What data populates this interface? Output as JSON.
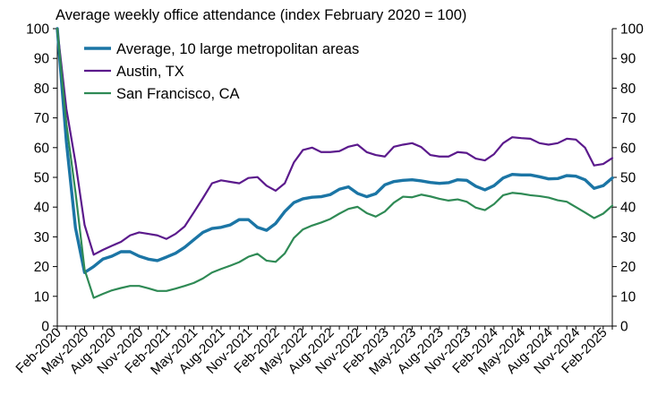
{
  "chart_data": {
    "type": "line",
    "title": "Average weekly office attendance (index February 2020 = 100)",
    "xlabel": "",
    "ylabel": "",
    "ylim": [
      0,
      100
    ],
    "yticks": [
      0,
      10,
      20,
      30,
      40,
      50,
      60,
      70,
      80,
      90,
      100
    ],
    "y_axis_both_sides": true,
    "grid": false,
    "legend_position": "top-left",
    "x": [
      "Feb-2020",
      "Mar-2020",
      "Apr-2020",
      "May-2020",
      "Jun-2020",
      "Jul-2020",
      "Aug-2020",
      "Sep-2020",
      "Oct-2020",
      "Nov-2020",
      "Dec-2020",
      "Jan-2021",
      "Feb-2021",
      "Mar-2021",
      "Apr-2021",
      "May-2021",
      "Jun-2021",
      "Jul-2021",
      "Aug-2021",
      "Sep-2021",
      "Oct-2021",
      "Nov-2021",
      "Dec-2021",
      "Jan-2022",
      "Feb-2022",
      "Mar-2022",
      "Apr-2022",
      "May-2022",
      "Jun-2022",
      "Jul-2022",
      "Aug-2022",
      "Sep-2022",
      "Oct-2022",
      "Nov-2022",
      "Dec-2022",
      "Jan-2023",
      "Feb-2023",
      "Mar-2023",
      "Apr-2023",
      "May-2023",
      "Jun-2023",
      "Jul-2023",
      "Aug-2023",
      "Sep-2023",
      "Oct-2023",
      "Nov-2023",
      "Dec-2023",
      "Jan-2024",
      "Feb-2024",
      "Mar-2024",
      "Apr-2024",
      "May-2024",
      "Jun-2024",
      "Jul-2024",
      "Aug-2024",
      "Sep-2024",
      "Oct-2024",
      "Nov-2024",
      "Dec-2024",
      "Jan-2025",
      "Feb-2025",
      "Mar-2025"
    ],
    "x_tick_labels": [
      "Feb-2020",
      "May-2020",
      "Aug-2020",
      "Nov-2020",
      "Feb-2021",
      "May-2021",
      "Aug-2021",
      "Nov-2021",
      "Feb-2022",
      "May-2022",
      "Aug-2022",
      "Nov-2022",
      "Feb-2023",
      "May-2023",
      "Aug-2023",
      "Nov-2023",
      "Feb-2024",
      "May-2024",
      "Aug-2024",
      "Nov-2024",
      "Feb-2025"
    ],
    "series": [
      {
        "name": "Average, 10 large metropolitan areas",
        "color": "#1b75a5",
        "line_width": 3.4,
        "values": [
          100,
          62,
          33,
          18,
          20,
          22.5,
          23.5,
          25,
          25,
          23.5,
          22.5,
          22,
          23.2,
          24.5,
          26.5,
          29,
          31.5,
          32.8,
          33.2,
          34,
          35.8,
          35.8,
          33.2,
          32.2,
          34.5,
          38.5,
          41.5,
          42.8,
          43.3,
          43.5,
          44.2,
          46,
          46.8,
          44.6,
          43.5,
          44.5,
          47.5,
          48.6,
          49,
          49.2,
          48.8,
          48.3,
          48,
          48.2,
          49.2,
          49,
          47,
          45.8,
          47.2,
          49.8,
          51,
          50.8,
          50.8,
          50.2,
          49.5,
          49.6,
          50.6,
          50.4,
          49.2,
          46.3,
          47.2,
          49.8
        ]
      },
      {
        "name": "Austin, TX",
        "color": "#5b1a8c",
        "line_width": 2.2,
        "values": [
          100,
          73,
          55,
          34,
          24,
          25.6,
          27,
          28.3,
          30.5,
          31.5,
          31,
          30.5,
          29.3,
          31,
          33.5,
          38.2,
          43,
          48,
          49,
          48.5,
          48,
          49.8,
          50.1,
          47.2,
          45.5,
          48,
          55,
          59.2,
          60,
          58.5,
          58.5,
          58.8,
          60.3,
          61,
          58.5,
          57.5,
          57,
          60.3,
          61,
          61.5,
          60.2,
          57.5,
          57,
          57,
          58.5,
          58.2,
          56.3,
          55.7,
          57.8,
          61.5,
          63.5,
          63.2,
          63,
          61.5,
          61,
          61.5,
          63,
          62.7,
          60,
          54,
          54.5,
          56.5
        ]
      },
      {
        "name": "San Francisco, CA",
        "color": "#2f8a55",
        "line_width": 2.2,
        "values": [
          100,
          68,
          45,
          19,
          9.5,
          10.8,
          12,
          12.8,
          13.5,
          13.5,
          12.7,
          11.8,
          11.8,
          12.6,
          13.5,
          14.5,
          16,
          18,
          19.2,
          20.3,
          21.5,
          23.3,
          24.3,
          22,
          21.6,
          24.4,
          29.6,
          32.5,
          33.8,
          34.8,
          36,
          37.8,
          39.4,
          40.1,
          38,
          36.8,
          38.5,
          41.5,
          43.5,
          43.3,
          44.2,
          43.6,
          42.8,
          42.2,
          42.6,
          41.8,
          39.8,
          39,
          41,
          44,
          44.8,
          44.5,
          44,
          43.7,
          43.2,
          42.3,
          41.8,
          40,
          38.2,
          36.3,
          37.8,
          40.5
        ]
      }
    ]
  }
}
